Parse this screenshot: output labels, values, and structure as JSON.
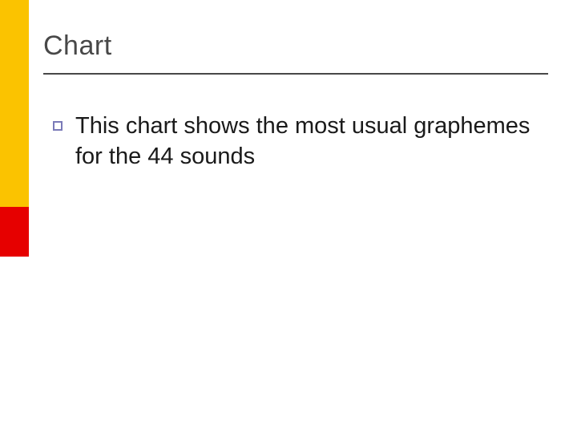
{
  "sidebar": {
    "top_color": "#fbc300",
    "mid_color": "#e60000",
    "bot_color": "#ffffff",
    "top_height": 258,
    "mid_height": 62,
    "bot_height": 220
  },
  "slide": {
    "title": "Chart",
    "rule_color": "#484848",
    "bullet_border_color": "#7a7ab8",
    "body": "This chart shows the most usual graphemes for the 44 sounds",
    "title_fontsize": 34,
    "body_fontsize": 29,
    "background_color": "#ffffff"
  }
}
